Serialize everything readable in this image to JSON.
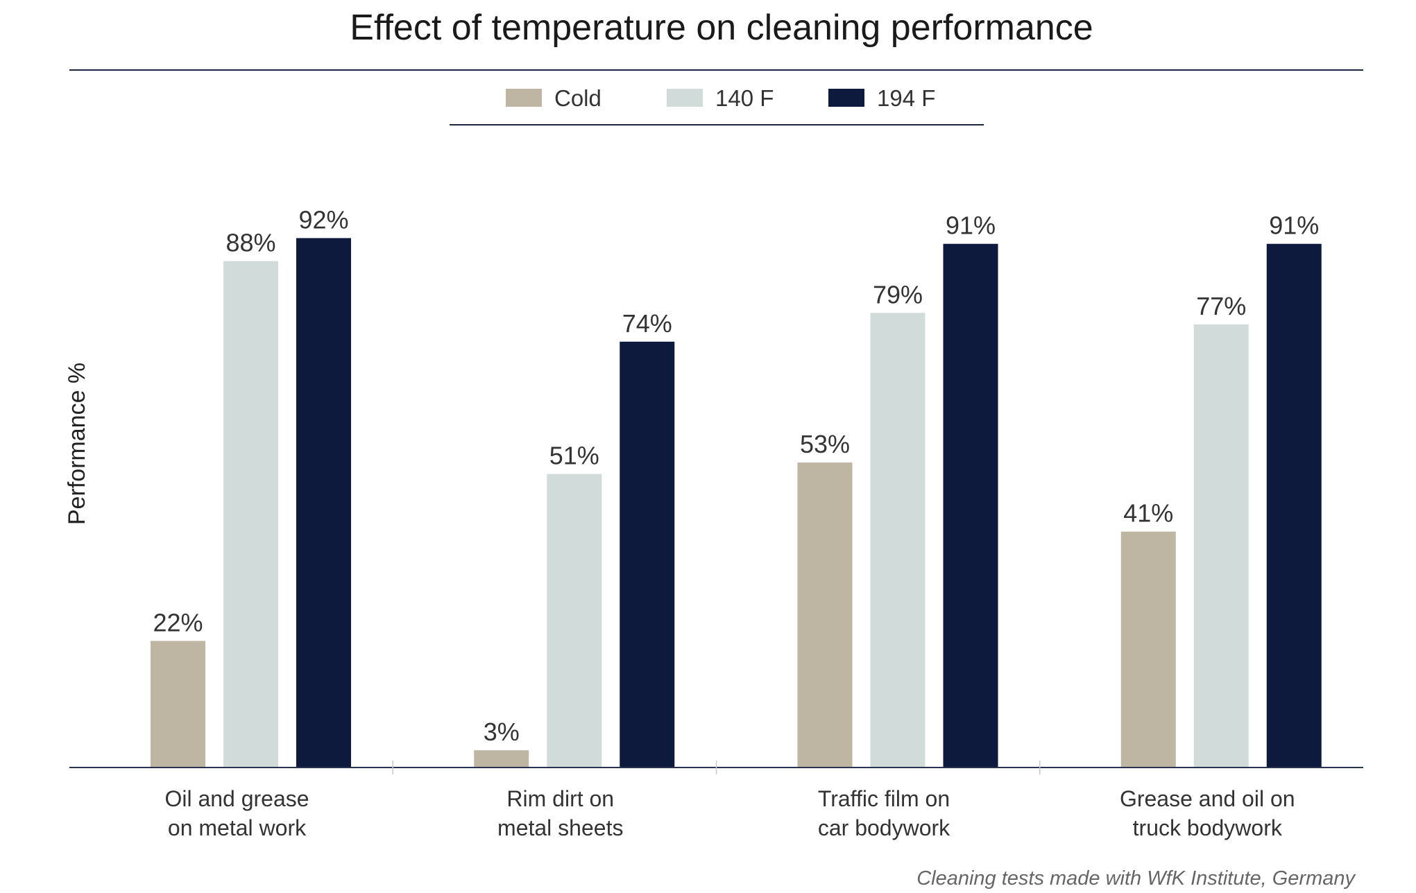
{
  "chart_data": {
    "type": "bar",
    "title": "Effect of temperature on cleaning performance",
    "ylabel": "Performance %",
    "xlabel": "",
    "ylim": [
      0,
      100
    ],
    "grid": false,
    "legend_position": "top-center",
    "categories": [
      [
        "Oil and grease",
        "on metal work"
      ],
      [
        "Rim dirt on",
        "metal sheets"
      ],
      [
        "Traffic film on",
        "car bodywork"
      ],
      [
        "Grease and oil on",
        "truck bodywork"
      ]
    ],
    "series": [
      {
        "name": "Cold",
        "color": "#beb6a3",
        "values": [
          22,
          3,
          53,
          41
        ]
      },
      {
        "name": "140 F",
        "color": "#d1dcda",
        "values": [
          88,
          51,
          79,
          77
        ]
      },
      {
        "name": "194 F",
        "color": "#0d1a3e",
        "values": [
          92,
          74,
          91,
          91
        ]
      }
    ],
    "value_suffix": "%",
    "source": "Cleaning tests made with WfK Institute, Germany"
  }
}
